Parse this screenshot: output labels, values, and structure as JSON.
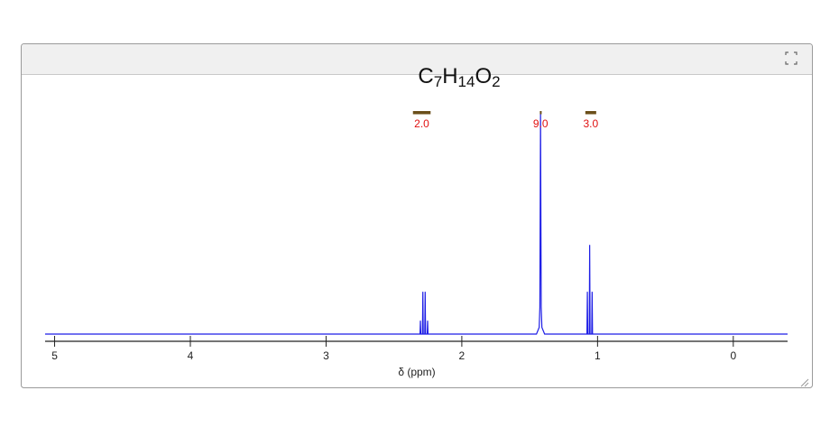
{
  "chart_data": {
    "type": "line",
    "title": "C7H14O2",
    "xlabel": "δ (ppm)",
    "xlim": [
      5.07,
      -0.4
    ],
    "xticks": [
      5,
      4,
      3,
      2,
      1,
      0
    ],
    "ylim": [
      0,
      100
    ],
    "series": [
      {
        "name": "spectrum",
        "color": "#1f1fe6",
        "x": [
          5.07,
          2.32,
          2.308,
          2.305,
          2.302,
          2.29,
          2.287,
          2.284,
          2.273,
          2.27,
          2.267,
          2.255,
          2.252,
          2.249,
          1.45,
          1.43,
          1.425,
          1.42,
          1.415,
          1.41,
          1.39,
          1.085,
          1.078,
          1.075,
          1.072,
          1.061,
          1.058,
          1.055,
          1.043,
          1.04,
          1.037,
          -0.4
        ],
        "values": [
          0,
          0,
          0,
          6,
          0,
          0,
          19,
          0,
          0,
          19,
          0,
          0,
          6,
          0,
          0,
          3,
          12,
          100,
          12,
          3,
          0,
          0,
          0,
          19,
          0,
          0,
          40,
          0,
          0,
          19,
          0,
          0
        ]
      }
    ],
    "integrals": [
      {
        "from": 2.36,
        "to": 2.23,
        "value": 2,
        "label": "2.0"
      },
      {
        "from": 1.425,
        "to": 1.415,
        "value": 9,
        "label": "9.0"
      },
      {
        "from": 1.09,
        "to": 1.01,
        "value": 3,
        "label": "3.0"
      }
    ],
    "integral_color": "#6b4f1a",
    "integral_label_color": "#e01010"
  }
}
